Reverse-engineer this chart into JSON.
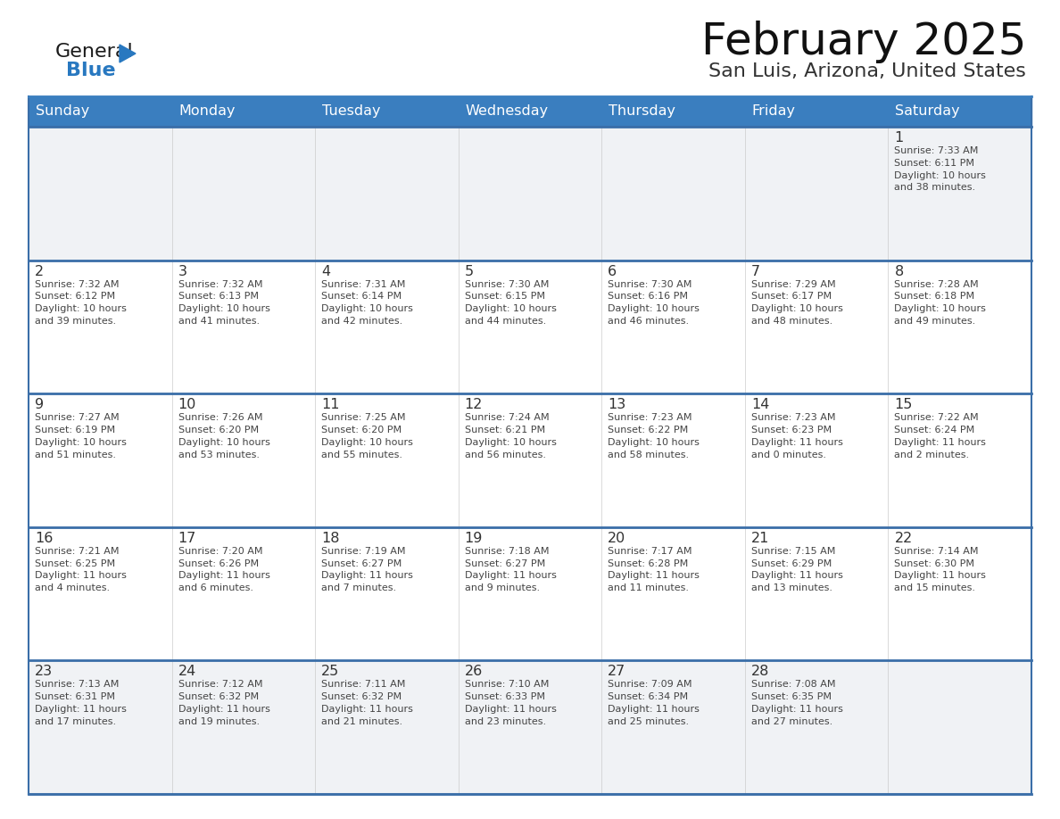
{
  "title": "February 2025",
  "subtitle": "San Luis, Arizona, United States",
  "header_color": "#3a7ebf",
  "header_text_color": "#ffffff",
  "day_names": [
    "Sunday",
    "Monday",
    "Tuesday",
    "Wednesday",
    "Thursday",
    "Friday",
    "Saturday"
  ],
  "grid_line_color": "#3a7ebf",
  "row_separator_color": "#3a6ea8",
  "cell_bg_color": "#ffffff",
  "first_row_bg": "#f0f2f5",
  "last_row_bg": "#f0f2f5",
  "day_number_color": "#333333",
  "detail_text_color": "#444444",
  "title_color": "#111111",
  "subtitle_color": "#333333",
  "logo_general_color": "#1a1a1a",
  "logo_blue_color": "#2878c0",
  "calendar_data": [
    [
      {
        "day": null,
        "sunrise": null,
        "sunset": null,
        "daylight": null
      },
      {
        "day": null,
        "sunrise": null,
        "sunset": null,
        "daylight": null
      },
      {
        "day": null,
        "sunrise": null,
        "sunset": null,
        "daylight": null
      },
      {
        "day": null,
        "sunrise": null,
        "sunset": null,
        "daylight": null
      },
      {
        "day": null,
        "sunrise": null,
        "sunset": null,
        "daylight": null
      },
      {
        "day": null,
        "sunrise": null,
        "sunset": null,
        "daylight": null
      },
      {
        "day": 1,
        "sunrise": "7:33 AM",
        "sunset": "6:11 PM",
        "daylight": "10 hours and 38 minutes."
      }
    ],
    [
      {
        "day": 2,
        "sunrise": "7:32 AM",
        "sunset": "6:12 PM",
        "daylight": "10 hours and 39 minutes."
      },
      {
        "day": 3,
        "sunrise": "7:32 AM",
        "sunset": "6:13 PM",
        "daylight": "10 hours and 41 minutes."
      },
      {
        "day": 4,
        "sunrise": "7:31 AM",
        "sunset": "6:14 PM",
        "daylight": "10 hours and 42 minutes."
      },
      {
        "day": 5,
        "sunrise": "7:30 AM",
        "sunset": "6:15 PM",
        "daylight": "10 hours and 44 minutes."
      },
      {
        "day": 6,
        "sunrise": "7:30 AM",
        "sunset": "6:16 PM",
        "daylight": "10 hours and 46 minutes."
      },
      {
        "day": 7,
        "sunrise": "7:29 AM",
        "sunset": "6:17 PM",
        "daylight": "10 hours and 48 minutes."
      },
      {
        "day": 8,
        "sunrise": "7:28 AM",
        "sunset": "6:18 PM",
        "daylight": "10 hours and 49 minutes."
      }
    ],
    [
      {
        "day": 9,
        "sunrise": "7:27 AM",
        "sunset": "6:19 PM",
        "daylight": "10 hours and 51 minutes."
      },
      {
        "day": 10,
        "sunrise": "7:26 AM",
        "sunset": "6:20 PM",
        "daylight": "10 hours and 53 minutes."
      },
      {
        "day": 11,
        "sunrise": "7:25 AM",
        "sunset": "6:20 PM",
        "daylight": "10 hours and 55 minutes."
      },
      {
        "day": 12,
        "sunrise": "7:24 AM",
        "sunset": "6:21 PM",
        "daylight": "10 hours and 56 minutes."
      },
      {
        "day": 13,
        "sunrise": "7:23 AM",
        "sunset": "6:22 PM",
        "daylight": "10 hours and 58 minutes."
      },
      {
        "day": 14,
        "sunrise": "7:23 AM",
        "sunset": "6:23 PM",
        "daylight": "11 hours and 0 minutes."
      },
      {
        "day": 15,
        "sunrise": "7:22 AM",
        "sunset": "6:24 PM",
        "daylight": "11 hours and 2 minutes."
      }
    ],
    [
      {
        "day": 16,
        "sunrise": "7:21 AM",
        "sunset": "6:25 PM",
        "daylight": "11 hours and 4 minutes."
      },
      {
        "day": 17,
        "sunrise": "7:20 AM",
        "sunset": "6:26 PM",
        "daylight": "11 hours and 6 minutes."
      },
      {
        "day": 18,
        "sunrise": "7:19 AM",
        "sunset": "6:27 PM",
        "daylight": "11 hours and 7 minutes."
      },
      {
        "day": 19,
        "sunrise": "7:18 AM",
        "sunset": "6:27 PM",
        "daylight": "11 hours and 9 minutes."
      },
      {
        "day": 20,
        "sunrise": "7:17 AM",
        "sunset": "6:28 PM",
        "daylight": "11 hours and 11 minutes."
      },
      {
        "day": 21,
        "sunrise": "7:15 AM",
        "sunset": "6:29 PM",
        "daylight": "11 hours and 13 minutes."
      },
      {
        "day": 22,
        "sunrise": "7:14 AM",
        "sunset": "6:30 PM",
        "daylight": "11 hours and 15 minutes."
      }
    ],
    [
      {
        "day": 23,
        "sunrise": "7:13 AM",
        "sunset": "6:31 PM",
        "daylight": "11 hours and 17 minutes."
      },
      {
        "day": 24,
        "sunrise": "7:12 AM",
        "sunset": "6:32 PM",
        "daylight": "11 hours and 19 minutes."
      },
      {
        "day": 25,
        "sunrise": "7:11 AM",
        "sunset": "6:32 PM",
        "daylight": "11 hours and 21 minutes."
      },
      {
        "day": 26,
        "sunrise": "7:10 AM",
        "sunset": "6:33 PM",
        "daylight": "11 hours and 23 minutes."
      },
      {
        "day": 27,
        "sunrise": "7:09 AM",
        "sunset": "6:34 PM",
        "daylight": "11 hours and 25 minutes."
      },
      {
        "day": 28,
        "sunrise": "7:08 AM",
        "sunset": "6:35 PM",
        "daylight": "11 hours and 27 minutes."
      },
      {
        "day": null,
        "sunrise": null,
        "sunset": null,
        "daylight": null
      }
    ]
  ]
}
